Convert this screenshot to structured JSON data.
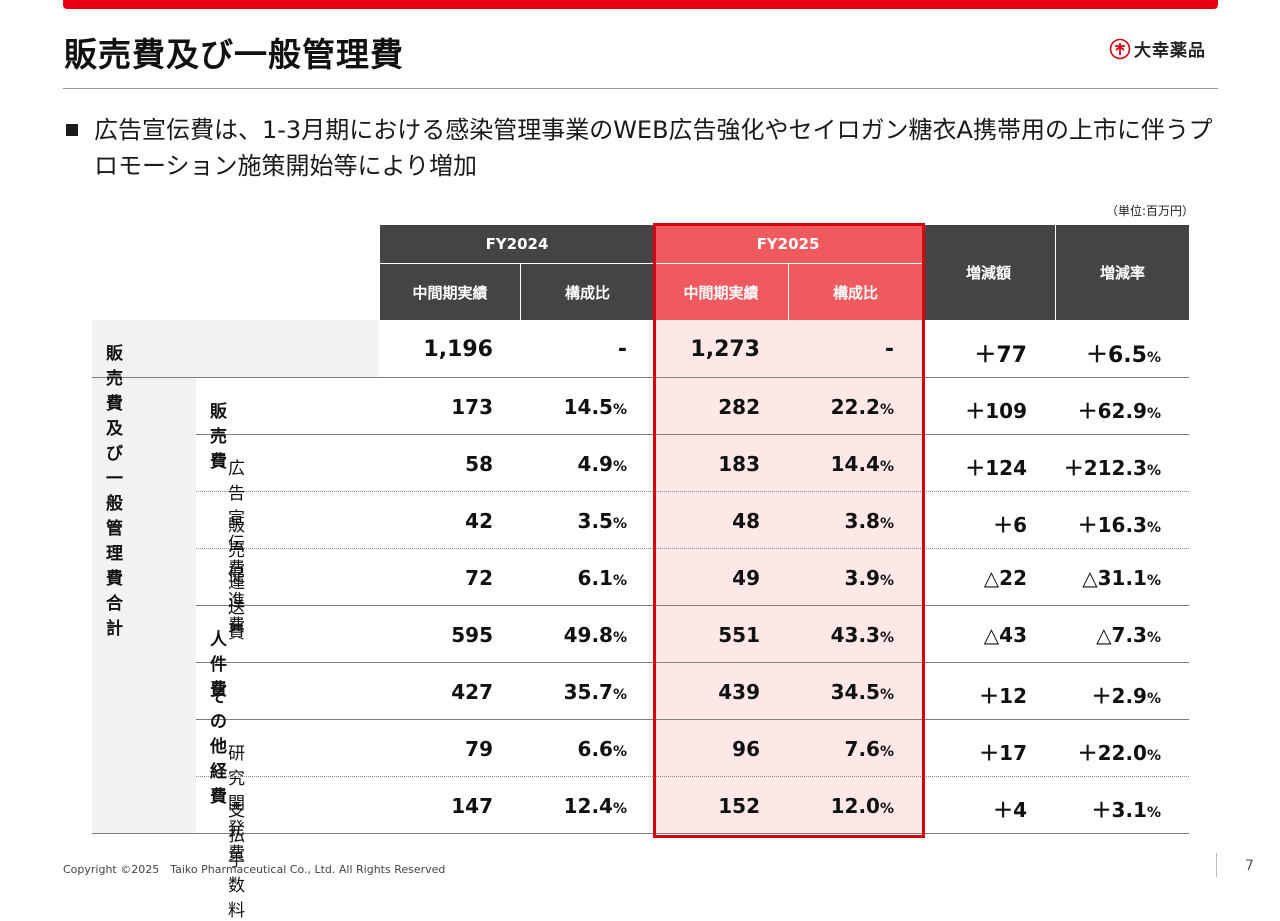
{
  "header": {
    "title": "販売費及び一般管理費",
    "logo_text": "大幸薬品",
    "brand_color": "#e60012"
  },
  "bullet": "広告宣伝費は、1-3月期における感染管理事業のWEB広告強化やセイロガン糖衣A携帯用の上市に伴うプロモーション施策開始等により増加",
  "unit": "（単位:百万円）",
  "table": {
    "group_headers": [
      "FY2024",
      "FY2025"
    ],
    "sub_headers": [
      "中間期実績",
      "構成比",
      "中間期実績",
      "構成比"
    ],
    "change_headers": [
      "増減額",
      "増減率"
    ],
    "rows": [
      {
        "label": "販売費及び一般管理費合計",
        "fy24": "1,196",
        "fy24_ratio": "-",
        "fy24_ratio_pct": "",
        "fy25": "1,273",
        "fy25_ratio": "-",
        "fy25_ratio_pct": "",
        "diff": "＋77",
        "rate": "＋6.5",
        "rate_pct": "%"
      },
      {
        "label": "販売費",
        "fy24": "173",
        "fy24_ratio": "14.5",
        "fy24_ratio_pct": "%",
        "fy25": "282",
        "fy25_ratio": "22.2",
        "fy25_ratio_pct": "%",
        "diff": "＋109",
        "rate": "＋62.9",
        "rate_pct": "%"
      },
      {
        "label": "広告宣伝費",
        "fy24": "58",
        "fy24_ratio": "4.9",
        "fy24_ratio_pct": "%",
        "fy25": "183",
        "fy25_ratio": "14.4",
        "fy25_ratio_pct": "%",
        "diff": "＋124",
        "rate": "＋212.3",
        "rate_pct": "%"
      },
      {
        "label": "販売促進費",
        "fy24": "42",
        "fy24_ratio": "3.5",
        "fy24_ratio_pct": "%",
        "fy25": "48",
        "fy25_ratio": "3.8",
        "fy25_ratio_pct": "%",
        "diff": "＋6",
        "rate": "＋16.3",
        "rate_pct": "%"
      },
      {
        "label": "運送費",
        "fy24": "72",
        "fy24_ratio": "6.1",
        "fy24_ratio_pct": "%",
        "fy25": "49",
        "fy25_ratio": "3.9",
        "fy25_ratio_pct": "%",
        "diff": "△22",
        "rate": "△31.1",
        "rate_pct": "%"
      },
      {
        "label": "人件費",
        "fy24": "595",
        "fy24_ratio": "49.8",
        "fy24_ratio_pct": "%",
        "fy25": "551",
        "fy25_ratio": "43.3",
        "fy25_ratio_pct": "%",
        "diff": "△43",
        "rate": "△7.3",
        "rate_pct": "%"
      },
      {
        "label": "その他経費",
        "fy24": "427",
        "fy24_ratio": "35.7",
        "fy24_ratio_pct": "%",
        "fy25": "439",
        "fy25_ratio": "34.5",
        "fy25_ratio_pct": "%",
        "diff": "＋12",
        "rate": "＋2.9",
        "rate_pct": "%"
      },
      {
        "label": "研究開発費",
        "fy24": "79",
        "fy24_ratio": "6.6",
        "fy24_ratio_pct": "%",
        "fy25": "96",
        "fy25_ratio": "7.6",
        "fy25_ratio_pct": "%",
        "diff": "＋17",
        "rate": "＋22.0",
        "rate_pct": "%"
      },
      {
        "label": "支払手数料",
        "fy24": "147",
        "fy24_ratio": "12.4",
        "fy24_ratio_pct": "%",
        "fy25": "152",
        "fy25_ratio": "12.0",
        "fy25_ratio_pct": "%",
        "diff": "＋4",
        "rate": "＋3.1",
        "rate_pct": "%"
      }
    ]
  },
  "footer": {
    "copyright": "Copyright ©2025　Taiko Pharmaceutical Co., Ltd. All Rights Reserved",
    "page": "7"
  }
}
